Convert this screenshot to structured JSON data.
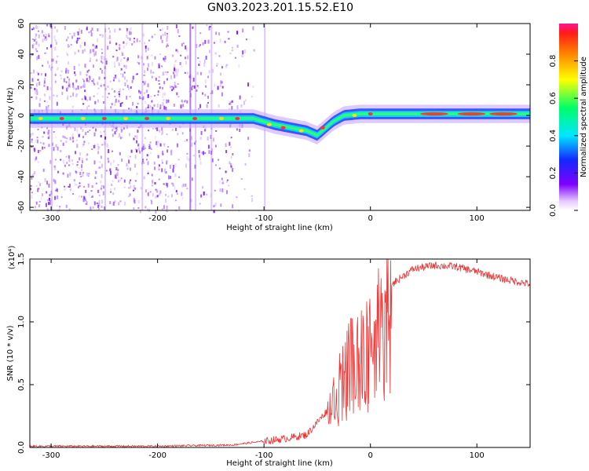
{
  "chart_data": [
    {
      "type": "heatmap",
      "title": "GN03.2023.201.15.52.E10",
      "xlabel": "Height of straight line (km)",
      "ylabel": "Frequency (Hz)",
      "xlim": [
        -320,
        150
      ],
      "ylim": [
        -62,
        60
      ],
      "x_ticks": [
        -300,
        -200,
        -100,
        0,
        100
      ],
      "y_ticks": [
        -60,
        -40,
        -20,
        0,
        20,
        40,
        60
      ],
      "colorbar": {
        "label": "Normalized spectral amplitude",
        "range": [
          0,
          1
        ],
        "ticks": [
          "0.0",
          "0.2",
          "0.4",
          "0.6",
          "0.8"
        ]
      },
      "ridge": [
        [
          -320,
          -2
        ],
        [
          -250,
          -2
        ],
        [
          -200,
          -2
        ],
        [
          -150,
          -2
        ],
        [
          -110,
          -2
        ],
        [
          -100,
          -4
        ],
        [
          -90,
          -6
        ],
        [
          -75,
          -8
        ],
        [
          -60,
          -10
        ],
        [
          -50,
          -13
        ],
        [
          -45,
          -10
        ],
        [
          -35,
          -4
        ],
        [
          -25,
          0
        ],
        [
          -10,
          1
        ],
        [
          0,
          1
        ],
        [
          30,
          1
        ],
        [
          60,
          1
        ],
        [
          100,
          1
        ],
        [
          150,
          1
        ]
      ],
      "ridge_peaks": [
        [
          -310,
          -2
        ],
        [
          -290,
          -2
        ],
        [
          -270,
          -2
        ],
        [
          -250,
          -2
        ],
        [
          -230,
          -2
        ],
        [
          -210,
          -2
        ],
        [
          -190,
          -2
        ],
        [
          -165,
          -2
        ],
        [
          -140,
          -2
        ],
        [
          -125,
          -2
        ],
        [
          -95,
          -6
        ],
        [
          -82,
          -8
        ],
        [
          -65,
          -10
        ],
        [
          -45,
          -8
        ],
        [
          -15,
          0
        ],
        [
          0,
          1
        ],
        [
          60,
          1
        ],
        [
          95,
          1
        ],
        [
          125,
          1
        ]
      ]
    },
    {
      "type": "line",
      "xlabel": "Height of straight line (km)",
      "ylabel": "SNR (10 * v/v)",
      "y_multiplier": "(x10⁴)",
      "xlim": [
        -320,
        150
      ],
      "ylim": [
        0,
        1.5
      ],
      "x_ticks": [
        -300,
        -200,
        -100,
        0,
        100
      ],
      "y_ticks": [
        "0.0",
        "0.5",
        "1.0",
        "1.5"
      ],
      "color": "#ee3333",
      "trend": [
        [
          -320,
          0.01
        ],
        [
          -200,
          0.01
        ],
        [
          -130,
          0.02
        ],
        [
          -100,
          0.05
        ],
        [
          -80,
          0.07
        ],
        [
          -60,
          0.1
        ],
        [
          -40,
          0.3
        ],
        [
          -30,
          0.55
        ],
        [
          -20,
          0.75
        ],
        [
          -10,
          0.85
        ],
        [
          0,
          0.95
        ],
        [
          10,
          1.15
        ],
        [
          20,
          1.3
        ],
        [
          40,
          1.42
        ],
        [
          60,
          1.45
        ],
        [
          80,
          1.44
        ],
        [
          100,
          1.4
        ],
        [
          120,
          1.35
        ],
        [
          150,
          1.3
        ]
      ]
    }
  ]
}
